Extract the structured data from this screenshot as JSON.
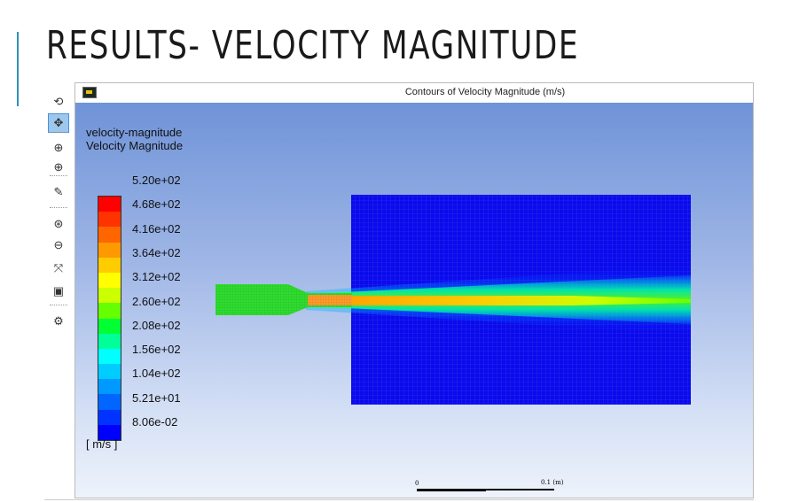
{
  "slide": {
    "title": "RESULTS- VELOCITY MAGNITUDE"
  },
  "toolbar": {
    "tools": [
      {
        "icon": "rotate-icon",
        "glyph": "⟲"
      },
      {
        "icon": "pan-icon",
        "glyph": "✥",
        "active": true
      },
      {
        "icon": "zoom-in-icon",
        "glyph": "⊕"
      },
      {
        "icon": "zoom-icon",
        "glyph": "⊕"
      },
      {
        "icon": "probe-icon",
        "glyph": "✎"
      },
      {
        "icon": "zoom-box-icon",
        "glyph": "⊛"
      },
      {
        "icon": "zoom-out-icon",
        "glyph": "⊖"
      },
      {
        "icon": "fit-icon",
        "glyph": "⤧"
      },
      {
        "icon": "camera-icon",
        "glyph": "▣"
      },
      {
        "icon": "view-options-icon",
        "glyph": "⚙"
      }
    ]
  },
  "viewer": {
    "title": "Contours of Velocity Magnitude (m/s)",
    "legend": {
      "title_line1": "velocity-magnitude",
      "title_line2": "Velocity Magnitude",
      "units": "[ m/s ]",
      "labels": [
        "5.20e+02",
        "4.68e+02",
        "4.16e+02",
        "3.64e+02",
        "3.12e+02",
        "2.60e+02",
        "2.08e+02",
        "1.56e+02",
        "1.04e+02",
        "5.21e+01",
        "8.06e-02"
      ],
      "colors": [
        "#ff0000",
        "#ff3300",
        "#ff6600",
        "#ff9900",
        "#ffcc00",
        "#ffff00",
        "#ccff00",
        "#66ff00",
        "#00ff33",
        "#00ff99",
        "#00ffff",
        "#00ccff",
        "#0099ff",
        "#0066ff",
        "#0033ff",
        "#0000ff"
      ]
    },
    "scale": {
      "zero": "0",
      "length": "0.1 (m)"
    }
  }
}
